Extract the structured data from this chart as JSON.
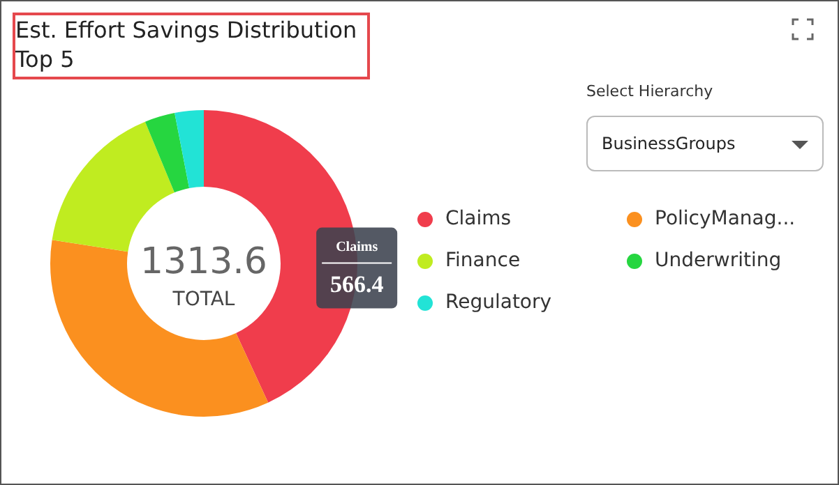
{
  "chart_data": {
    "type": "donut",
    "title": "Est. Effort Savings Distribution Top 5",
    "categories": [
      "Claims",
      "PolicyManag...",
      "Finance",
      "Underwriting",
      "Regulatory"
    ],
    "values": [
      566.4,
      451,
      214.2,
      42,
      40
    ],
    "colors": [
      "#f03d4c",
      "#fb901f",
      "#c0ec20",
      "#26d640",
      "#22e3d6"
    ],
    "value_labels": [
      "566.4",
      null,
      null,
      null,
      null
    ],
    "legend": "right",
    "annotations": [
      "1313.6",
      "TOTAL",
      "Select Hierarchy",
      "BusinessGroups"
    ]
  }
}
